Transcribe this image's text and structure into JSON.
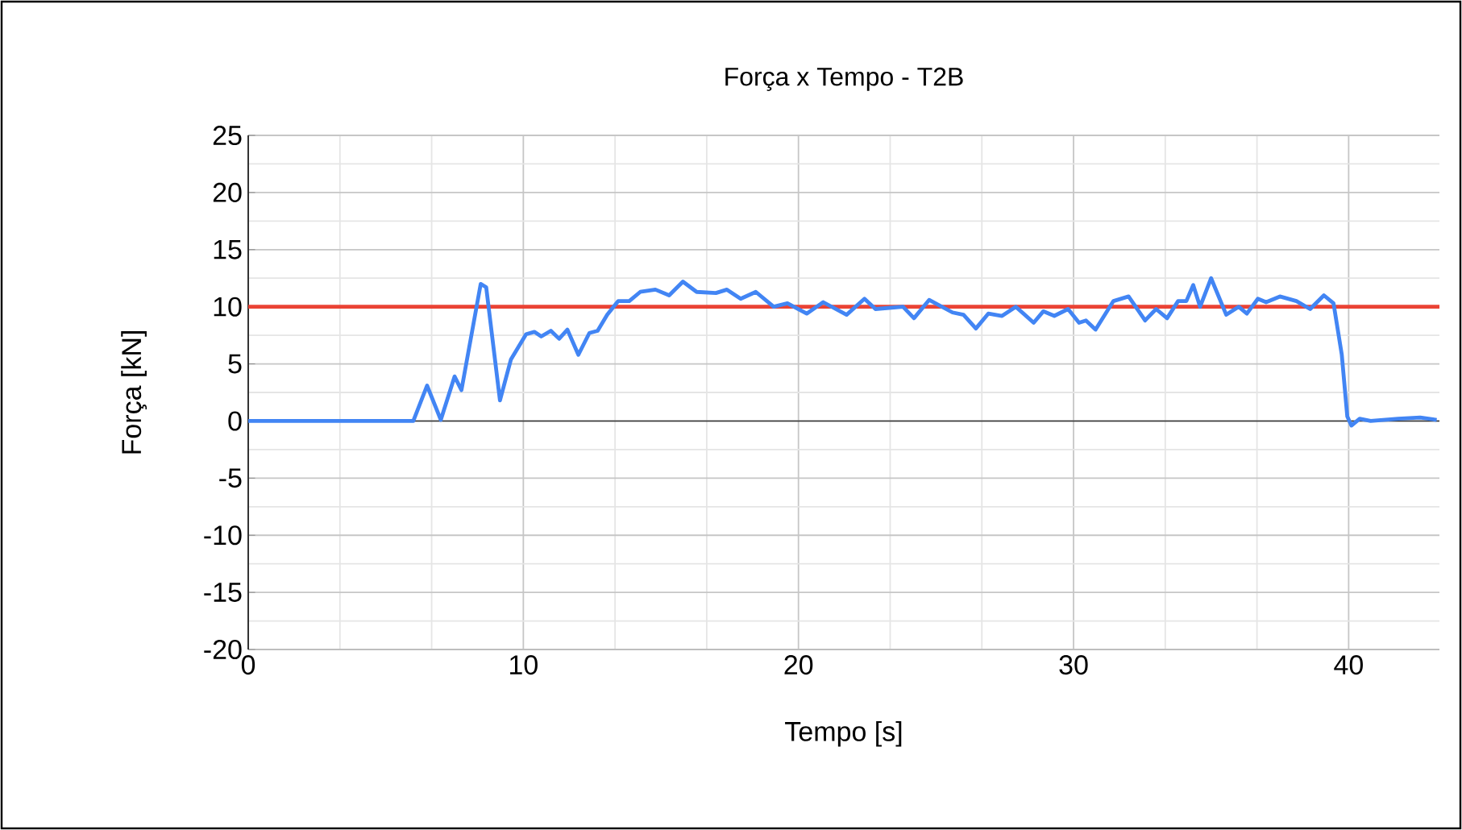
{
  "chart_data": {
    "type": "line",
    "title": "Força x Tempo - T2B",
    "xlabel": "Tempo [s]",
    "ylabel": "Força [kN]",
    "xlim": [
      0,
      43.3
    ],
    "xticks": [
      0,
      10,
      20,
      30,
      40
    ],
    "ylim": [
      -20,
      25
    ],
    "yticks": [
      -20,
      -15,
      -10,
      -5,
      0,
      5,
      10,
      15,
      20,
      25
    ],
    "grid": true,
    "series": [
      {
        "color": "#4285f4",
        "x": [
          0,
          3,
          6.0,
          6.5,
          7.0,
          7.5,
          7.75,
          8.45,
          8.65,
          9.15,
          9.55,
          10.1,
          10.4,
          10.65,
          11.0,
          11.3,
          11.6,
          12.0,
          12.4,
          12.7,
          13.05,
          13.45,
          13.85,
          14.25,
          14.8,
          15.3,
          15.8,
          16.3,
          17.0,
          17.4,
          17.9,
          18.45,
          19.1,
          19.6,
          20.3,
          20.9,
          21.75,
          22.4,
          22.8,
          23.8,
          24.2,
          24.75,
          25.6,
          26.0,
          26.45,
          26.9,
          27.4,
          27.9,
          28.55,
          28.9,
          29.3,
          29.8,
          30.2,
          30.45,
          30.8,
          31.45,
          32.0,
          32.6,
          33.0,
          33.4,
          33.8,
          34.1,
          34.35,
          34.6,
          35.0,
          35.55,
          36.0,
          36.3,
          36.7,
          37.0,
          37.5,
          38.1,
          38.6,
          39.1,
          39.45,
          39.75,
          39.95,
          40.1,
          40.4,
          40.8,
          41.8,
          42.6,
          43.2
        ],
        "values": [
          0,
          0,
          0,
          3.1,
          0.1,
          3.9,
          2.7,
          12.0,
          11.7,
          1.8,
          5.4,
          7.6,
          7.8,
          7.4,
          7.9,
          7.2,
          8.0,
          5.8,
          7.7,
          7.9,
          9.3,
          10.5,
          10.5,
          11.3,
          11.5,
          11.0,
          12.2,
          11.3,
          11.2,
          11.5,
          10.7,
          11.3,
          10.0,
          10.3,
          9.4,
          10.4,
          9.3,
          10.7,
          9.8,
          10.0,
          9.0,
          10.6,
          9.5,
          9.3,
          8.1,
          9.4,
          9.2,
          10.0,
          8.6,
          9.6,
          9.2,
          9.8,
          8.6,
          8.8,
          8.0,
          10.5,
          10.9,
          8.8,
          9.8,
          9.0,
          10.5,
          10.5,
          11.9,
          10.0,
          12.5,
          9.3,
          10.0,
          9.4,
          10.7,
          10.4,
          10.9,
          10.5,
          9.8,
          11.0,
          10.3,
          5.8,
          0.4,
          -0.4,
          0.2,
          0.0,
          0.2,
          0.3,
          0.1
        ]
      }
    ],
    "ref_lines": [
      {
        "axis": "y",
        "value": 10,
        "color": "#ea4335"
      },
      {
        "axis": "y",
        "value": 0,
        "color": "#333333"
      }
    ]
  }
}
